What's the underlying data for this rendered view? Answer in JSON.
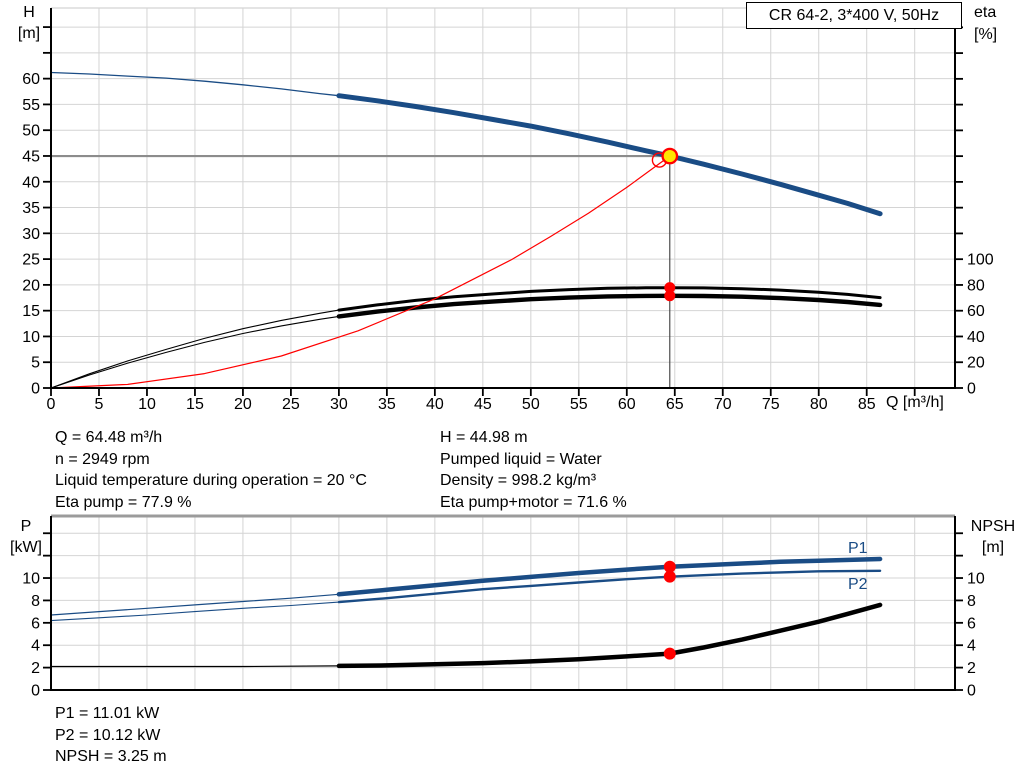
{
  "title_box": {
    "label": "CR 64-2, 3*400 V, 50Hz"
  },
  "info_block": {
    "left": [
      "Q = 64.48 m³/h",
      "n = 2949 rpm",
      "Liquid temperature during operation = 20 °C",
      "Eta pump = 77.9 %"
    ],
    "right": [
      "H = 44.98 m",
      "Pumped liquid = Water",
      "Density = 998.2 kg/m³",
      "Eta pump+motor = 71.6 %"
    ]
  },
  "result_block": [
    "P1 = 11.01 kW",
    "P2 = 10.12 kW",
    "NPSH = 3.25 m"
  ],
  "colors": {
    "curve_blue": "#1A4C85",
    "curve_black": "#000000",
    "curve_red": "#FF0000",
    "duty_yellow": "#FFE600",
    "grid": "#D4D4D4",
    "axis": "#000000",
    "duty_guide_gray": "#8C8C8C",
    "duty_guide_dark": "#3C3C3C",
    "chart_top_border": "#9B9B9B",
    "text": "#000000"
  },
  "chart_data": [
    {
      "type": "line",
      "title": "CR 64-2, 3*400 V, 50Hz",
      "xlabel": "Q [m³/h]",
      "ylabel_left": "H [m]",
      "ylabel_left_lines": [
        "H",
        "[m]"
      ],
      "ylabel_right": "eta [%]",
      "ylabel_right_lines": [
        "eta",
        "[%]"
      ],
      "xlim": [
        0,
        94.2
      ],
      "ylim_left": [
        0,
        73.7
      ],
      "ylim_right": [
        0,
        295
      ],
      "grid": true,
      "x_ticks": {
        "step": 5,
        "max": 90,
        "label_max": 85,
        "show_labels": true
      },
      "left_ticks": {
        "step": 5,
        "max": 70,
        "label_max": 60
      },
      "right_ticks": {
        "step": 20,
        "max": 280,
        "label_max": 100
      },
      "series": [
        {
          "name": "H pump curve",
          "label": "",
          "axis": "left",
          "color_key": "curve_blue",
          "width_thin": 1.3,
          "width_thick": 5,
          "thin_until": 30,
          "points": [
            [
              0,
              61.2
            ],
            [
              4,
              60.9
            ],
            [
              8,
              60.5
            ],
            [
              12,
              60.1
            ],
            [
              16,
              59.5
            ],
            [
              20,
              58.8
            ],
            [
              24,
              58.0
            ],
            [
              28,
              57.1
            ],
            [
              30,
              56.7
            ],
            [
              34,
              55.7
            ],
            [
              38,
              54.6
            ],
            [
              42,
              53.4
            ],
            [
              46,
              52.1
            ],
            [
              50,
              50.8
            ],
            [
              54,
              49.3
            ],
            [
              58,
              47.7
            ],
            [
              62,
              46.0
            ],
            [
              64.48,
              45.0
            ],
            [
              68,
              43.4
            ],
            [
              72,
              41.5
            ],
            [
              76,
              39.5
            ],
            [
              80,
              37.4
            ],
            [
              83,
              35.8
            ],
            [
              86.4,
              33.8
            ]
          ]
        },
        {
          "name": "Eta pump",
          "label": "",
          "axis": "right",
          "color_key": "curve_black",
          "width_thin": 1.1,
          "width_thick": 3,
          "thin_until": 30,
          "points": [
            [
              0,
              0
            ],
            [
              4,
              11
            ],
            [
              8,
              21
            ],
            [
              12,
              30
            ],
            [
              16,
              38.5
            ],
            [
              20,
              46
            ],
            [
              24,
              52.5
            ],
            [
              28,
              58
            ],
            [
              30,
              60.5
            ],
            [
              34,
              64.5
            ],
            [
              38,
              68
            ],
            [
              42,
              70.8
            ],
            [
              46,
              73
            ],
            [
              50,
              75
            ],
            [
              54,
              76.4
            ],
            [
              58,
              77.4
            ],
            [
              62,
              77.8
            ],
            [
              64.48,
              77.9
            ],
            [
              68,
              77.7
            ],
            [
              72,
              77.1
            ],
            [
              76,
              76
            ],
            [
              80,
              74.3
            ],
            [
              83,
              72.7
            ],
            [
              86.4,
              70.2
            ]
          ]
        },
        {
          "name": "Eta pump+motor",
          "label": "",
          "axis": "right",
          "color_key": "curve_black",
          "width_thin": 1.1,
          "width_thick": 4.4,
          "thin_until": 30,
          "points": [
            [
              0,
              0
            ],
            [
              4,
              10.1
            ],
            [
              8,
              19.3
            ],
            [
              12,
              27.6
            ],
            [
              16,
              35.4
            ],
            [
              20,
              42.3
            ],
            [
              24,
              48.2
            ],
            [
              28,
              53.3
            ],
            [
              30,
              55.6
            ],
            [
              34,
              59.3
            ],
            [
              38,
              62.5
            ],
            [
              42,
              65.1
            ],
            [
              46,
              67.1
            ],
            [
              50,
              68.9
            ],
            [
              54,
              70.2
            ],
            [
              58,
              71.1
            ],
            [
              62,
              71.5
            ],
            [
              64.48,
              71.6
            ],
            [
              68,
              71.4
            ],
            [
              72,
              70.9
            ],
            [
              76,
              69.8
            ],
            [
              80,
              68.3
            ],
            [
              83,
              66.8
            ],
            [
              86.4,
              64.5
            ]
          ]
        },
        {
          "name": "System curve",
          "label": "",
          "axis": "left",
          "color_key": "curve_red",
          "width_thin": 1.2,
          "width_thick": 1.2,
          "thin_until": 999,
          "points": [
            [
              0,
              0
            ],
            [
              8,
              0.7
            ],
            [
              16,
              2.8
            ],
            [
              24,
              6.2
            ],
            [
              32,
              11.1
            ],
            [
              40,
              17.3
            ],
            [
              48,
              24.9
            ],
            [
              52,
              29.3
            ],
            [
              56,
              33.9
            ],
            [
              60,
              38.9
            ],
            [
              64.48,
              45.0
            ]
          ]
        }
      ],
      "duty_point": {
        "q": 64.48,
        "value": 44.98
      },
      "requested_duty_ring": {
        "q": 63.4,
        "value": 44.2
      },
      "eta_markers": [
        {
          "q": 64.48,
          "value": 77.9
        },
        {
          "q": 64.48,
          "value": 71.6
        }
      ]
    },
    {
      "type": "line",
      "title": "",
      "xlabel": "",
      "ylabel_left": "P [kW]",
      "ylabel_left_lines": [
        "P",
        "[kW]"
      ],
      "ylabel_right": "NPSH [m]",
      "ylabel_right_lines": [
        "NPSH",
        "[m]"
      ],
      "xlim": [
        0,
        94.2
      ],
      "ylim_left": [
        0,
        15.54
      ],
      "ylim_right": [
        0,
        15.54
      ],
      "grid": true,
      "x_ticks": {
        "step": 5,
        "max": 90,
        "label_max": -1,
        "show_labels": false
      },
      "left_ticks": {
        "step": 2,
        "max": 14,
        "label_max": 10
      },
      "right_ticks": {
        "step": 2,
        "max": 14,
        "label_max": 10
      },
      "series": [
        {
          "name": "P1 power input",
          "label": "P1",
          "axis": "left",
          "color_key": "curve_blue",
          "width_thin": 1.2,
          "width_thick": 4.5,
          "thin_until": 30,
          "points": [
            [
              0,
              6.7
            ],
            [
              5,
              7.0
            ],
            [
              10,
              7.3
            ],
            [
              15,
              7.6
            ],
            [
              20,
              7.9
            ],
            [
              25,
              8.2
            ],
            [
              30,
              8.55
            ],
            [
              35,
              8.95
            ],
            [
              40,
              9.35
            ],
            [
              45,
              9.75
            ],
            [
              50,
              10.1
            ],
            [
              55,
              10.45
            ],
            [
              60,
              10.75
            ],
            [
              64.48,
              11.01
            ],
            [
              68,
              11.15
            ],
            [
              72,
              11.3
            ],
            [
              76,
              11.45
            ],
            [
              80,
              11.55
            ],
            [
              86.4,
              11.7
            ]
          ]
        },
        {
          "name": "P2 shaft power",
          "label": "P2",
          "axis": "left",
          "color_key": "curve_blue",
          "width_thin": 1.1,
          "width_thick": 2.4,
          "thin_until": 30,
          "points": [
            [
              0,
              6.2
            ],
            [
              5,
              6.45
            ],
            [
              10,
              6.7
            ],
            [
              15,
              7.0
            ],
            [
              20,
              7.3
            ],
            [
              25,
              7.55
            ],
            [
              30,
              7.85
            ],
            [
              35,
              8.2
            ],
            [
              40,
              8.6
            ],
            [
              45,
              9.0
            ],
            [
              50,
              9.3
            ],
            [
              55,
              9.6
            ],
            [
              60,
              9.9
            ],
            [
              64.48,
              10.12
            ],
            [
              68,
              10.25
            ],
            [
              72,
              10.4
            ],
            [
              76,
              10.5
            ],
            [
              80,
              10.6
            ],
            [
              86.4,
              10.65
            ]
          ]
        },
        {
          "name": "NPSH curve",
          "label": "",
          "axis": "right",
          "color_key": "curve_black",
          "width_thin": 1.2,
          "width_thick": 4.5,
          "thin_until": 30,
          "points": [
            [
              0,
              2.1
            ],
            [
              10,
              2.1
            ],
            [
              20,
              2.1
            ],
            [
              30,
              2.15
            ],
            [
              35,
              2.2
            ],
            [
              40,
              2.3
            ],
            [
              45,
              2.4
            ],
            [
              50,
              2.55
            ],
            [
              55,
              2.75
            ],
            [
              60,
              3.0
            ],
            [
              64.48,
              3.25
            ],
            [
              68,
              3.8
            ],
            [
              72,
              4.5
            ],
            [
              76,
              5.3
            ],
            [
              80,
              6.1
            ],
            [
              83,
              6.8
            ],
            [
              86.4,
              7.6
            ]
          ]
        }
      ],
      "markers": [
        {
          "q": 64.48,
          "value": 11.01
        },
        {
          "q": 64.48,
          "value": 10.12
        },
        {
          "q": 64.48,
          "value": 3.25
        }
      ]
    }
  ]
}
